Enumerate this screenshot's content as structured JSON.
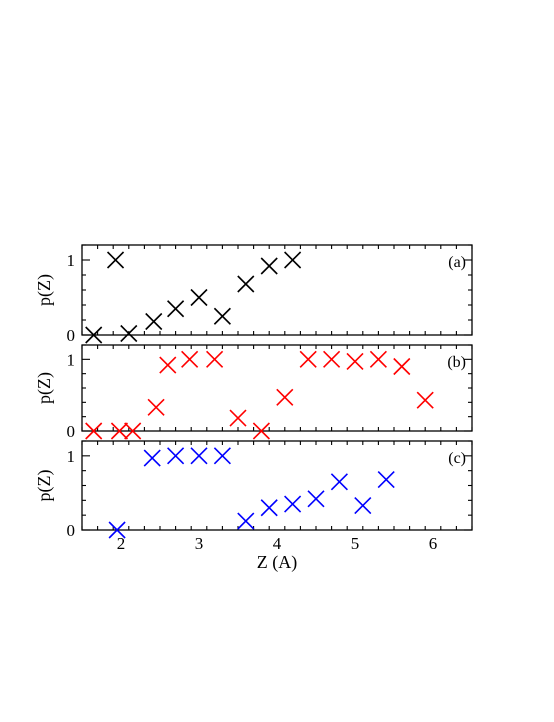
{
  "chart_data": {
    "type": "scatter",
    "marker": "x",
    "xlabel": "Z (A)",
    "xlim": [
      1.5,
      6.5
    ],
    "xticks": [
      2,
      3,
      4,
      5,
      6
    ],
    "x_minor_step": 0.2,
    "grid": false,
    "shared_x_axis": true,
    "panels": [
      {
        "tag": "(a)",
        "ylabel": "p(Z)",
        "ylim": [
          0,
          1.2
        ],
        "yticks": [
          0,
          1
        ],
        "color": "#000000",
        "points": [
          {
            "x": 1.65,
            "y": 0.0
          },
          {
            "x": 1.93,
            "y": 1.0
          },
          {
            "x": 2.1,
            "y": 0.02
          },
          {
            "x": 2.42,
            "y": 0.18
          },
          {
            "x": 2.7,
            "y": 0.35
          },
          {
            "x": 3.0,
            "y": 0.5
          },
          {
            "x": 3.3,
            "y": 0.25
          },
          {
            "x": 3.6,
            "y": 0.68
          },
          {
            "x": 3.9,
            "y": 0.92
          },
          {
            "x": 4.2,
            "y": 1.0
          }
        ]
      },
      {
        "tag": "(b)",
        "ylabel": "p(Z)",
        "ylim": [
          0,
          1.2
        ],
        "yticks": [
          0,
          1
        ],
        "color": "#ff0000",
        "points": [
          {
            "x": 1.65,
            "y": 0.0
          },
          {
            "x": 1.98,
            "y": 0.0
          },
          {
            "x": 2.15,
            "y": 0.0
          },
          {
            "x": 2.45,
            "y": 0.33
          },
          {
            "x": 2.6,
            "y": 0.92
          },
          {
            "x": 2.88,
            "y": 1.0
          },
          {
            "x": 3.2,
            "y": 1.0
          },
          {
            "x": 3.5,
            "y": 0.18
          },
          {
            "x": 3.8,
            "y": 0.0
          },
          {
            "x": 4.1,
            "y": 0.47
          },
          {
            "x": 4.4,
            "y": 1.0
          },
          {
            "x": 4.7,
            "y": 1.0
          },
          {
            "x": 5.0,
            "y": 0.97
          },
          {
            "x": 5.3,
            "y": 1.0
          },
          {
            "x": 5.6,
            "y": 0.9
          },
          {
            "x": 5.9,
            "y": 0.43
          }
        ]
      },
      {
        "tag": "(c)",
        "ylabel": "p(Z)",
        "ylim": [
          0,
          1.2
        ],
        "yticks": [
          0,
          1
        ],
        "color": "#0000ff",
        "points": [
          {
            "x": 1.95,
            "y": 0.0
          },
          {
            "x": 2.4,
            "y": 0.97
          },
          {
            "x": 2.7,
            "y": 1.0
          },
          {
            "x": 3.0,
            "y": 1.0
          },
          {
            "x": 3.3,
            "y": 1.0
          },
          {
            "x": 3.6,
            "y": 0.12
          },
          {
            "x": 3.9,
            "y": 0.3
          },
          {
            "x": 4.2,
            "y": 0.35
          },
          {
            "x": 4.5,
            "y": 0.42
          },
          {
            "x": 4.8,
            "y": 0.65
          },
          {
            "x": 5.1,
            "y": 0.33
          },
          {
            "x": 5.4,
            "y": 0.68
          }
        ]
      }
    ]
  }
}
